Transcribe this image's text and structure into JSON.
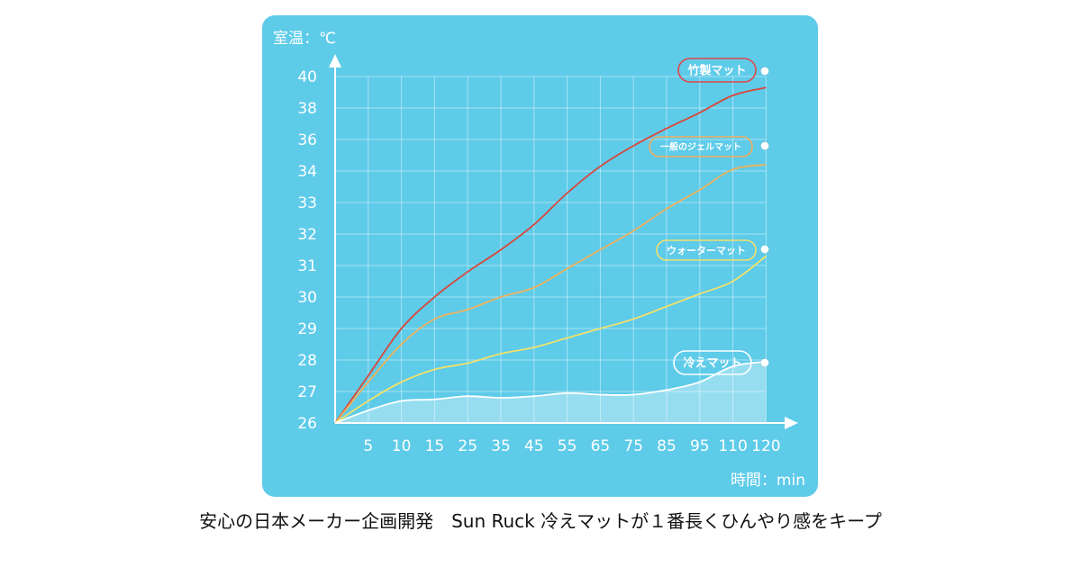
{
  "caption": "安心の日本メーカー企画開発　Sun Ruck 冷えマットが１番長くひんやり感をキープ",
  "chart_data": {
    "type": "line",
    "ylabel": "室温：℃",
    "xlabel": "時間：min",
    "x": [
      0,
      5,
      10,
      15,
      25,
      35,
      45,
      55,
      65,
      75,
      85,
      95,
      110,
      120
    ],
    "xticks": [
      "5",
      "10",
      "15",
      "25",
      "35",
      "45",
      "55",
      "65",
      "75",
      "85",
      "95",
      "110",
      "120"
    ],
    "yticks": [
      "26",
      "27",
      "28",
      "29",
      "30",
      "31",
      "32",
      "33",
      "34",
      "36",
      "38",
      "40"
    ],
    "grid": true,
    "background_color": "#5ecbe9",
    "series": [
      {
        "name": "竹製マット",
        "color": "#d9473a",
        "values": [
          26,
          27.5,
          29,
          30,
          30.8,
          31.5,
          32.3,
          33.3,
          34.3,
          35.6,
          36.7,
          37.7,
          38.8,
          39.3
        ]
      },
      {
        "name": "一般のジェルマット",
        "color": "#f0b25a",
        "values": [
          26,
          27.3,
          28.5,
          29.3,
          29.6,
          30,
          30.3,
          30.9,
          31.5,
          32.1,
          32.8,
          33.4,
          34.1,
          34.4
        ]
      },
      {
        "name": "ウォーターマット",
        "color": "#f2e16a",
        "values": [
          26,
          26.7,
          27.3,
          27.7,
          27.9,
          28.2,
          28.4,
          28.7,
          29,
          29.3,
          29.7,
          30.1,
          30.5,
          31.3
        ]
      },
      {
        "name": "冷えマット",
        "color": "#ffffff",
        "values": [
          26,
          26.4,
          26.7,
          26.75,
          26.85,
          26.8,
          26.85,
          26.95,
          26.9,
          26.9,
          27.05,
          27.3,
          27.8,
          27.95
        ]
      }
    ]
  }
}
